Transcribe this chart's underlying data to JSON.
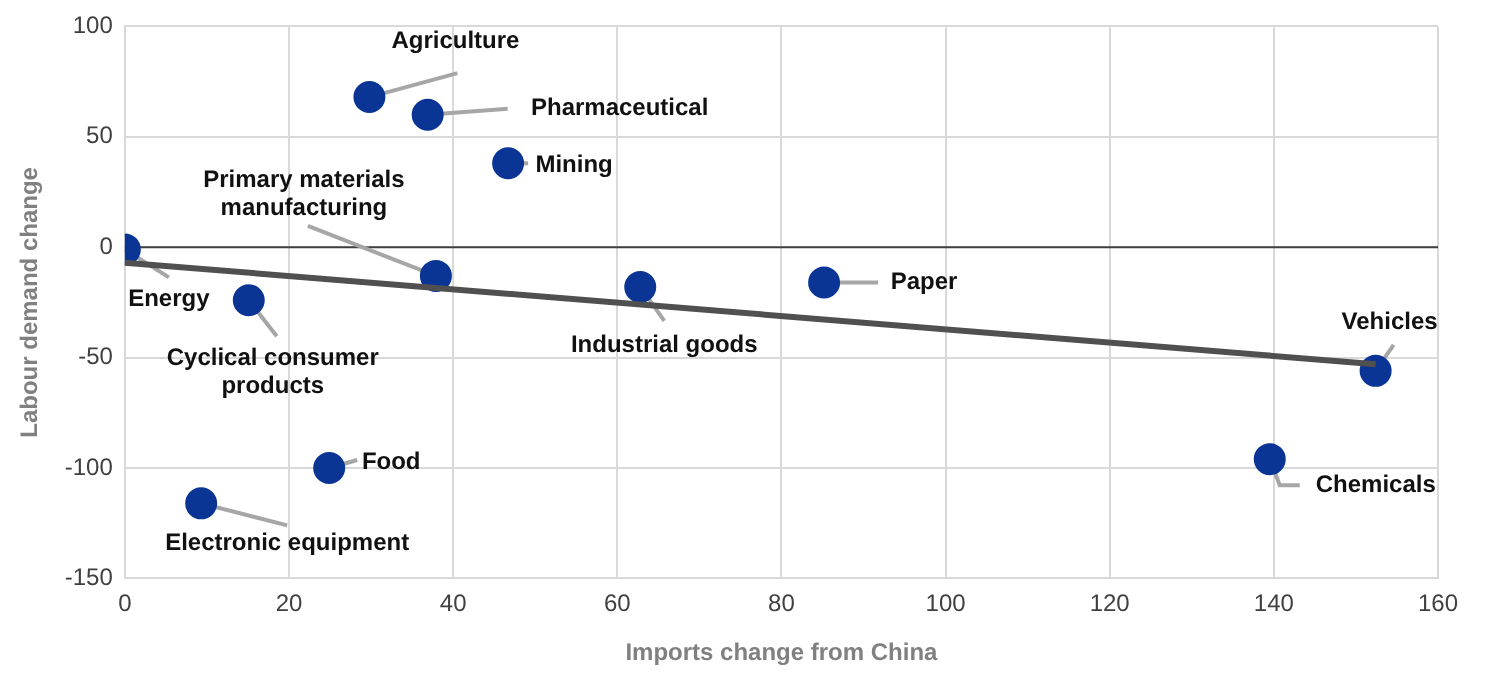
{
  "chart_data": {
    "type": "scatter",
    "xlabel": "Imports change from China",
    "ylabel": "Labour demand change",
    "xlim": [
      0,
      160
    ],
    "xticks": [
      0,
      20,
      40,
      60,
      80,
      100,
      120,
      140,
      160
    ],
    "ylim": [
      -150,
      100
    ],
    "yticks": [
      -150,
      -100,
      -50,
      0,
      50,
      100
    ],
    "grid": true,
    "legend": false,
    "marker": "circle",
    "ref_lines": [
      {
        "axis": "y",
        "value": 0,
        "color": "#404040"
      }
    ],
    "series": [
      {
        "type": "scatter",
        "color": "#0a3595",
        "x": [
          29.8,
          36.9,
          46.7,
          37.9,
          0,
          15.1,
          62.8,
          85.2,
          152.4,
          139.5,
          24.9,
          9.3
        ],
        "values": [
          68,
          60,
          38,
          -13,
          -1,
          -24,
          -18,
          -16,
          -56,
          -96,
          -100,
          -116
        ]
      },
      {
        "type": "line",
        "color": "#505050",
        "line_style": "solid",
        "marker": "none",
        "x": [
          0,
          152.4
        ],
        "values": [
          -7,
          -53
        ]
      }
    ],
    "annotations": [
      {
        "text": "Agriculture",
        "x": 29.8,
        "y": 68
      },
      {
        "text": "Pharmaceutical",
        "x": 36.9,
        "y": 60
      },
      {
        "text": "Mining",
        "x": 46.7,
        "y": 38
      },
      {
        "text": "Primary materials manufacturing",
        "x": 37.9,
        "y": -13
      },
      {
        "text": "Energy",
        "x": 0,
        "y": -1
      },
      {
        "text": "Cyclical consumer products",
        "x": 15.1,
        "y": -24
      },
      {
        "text": "Industrial goods",
        "x": 62.8,
        "y": -18
      },
      {
        "text": "Paper",
        "x": 85.2,
        "y": -16
      },
      {
        "text": "Vehicles",
        "x": 152.4,
        "y": -56
      },
      {
        "text": "Chemicals",
        "x": 139.5,
        "y": -96
      },
      {
        "text": "Food",
        "x": 24.9,
        "y": -100
      },
      {
        "text": "Electronic equipment",
        "x": 9.3,
        "y": -116
      }
    ]
  }
}
